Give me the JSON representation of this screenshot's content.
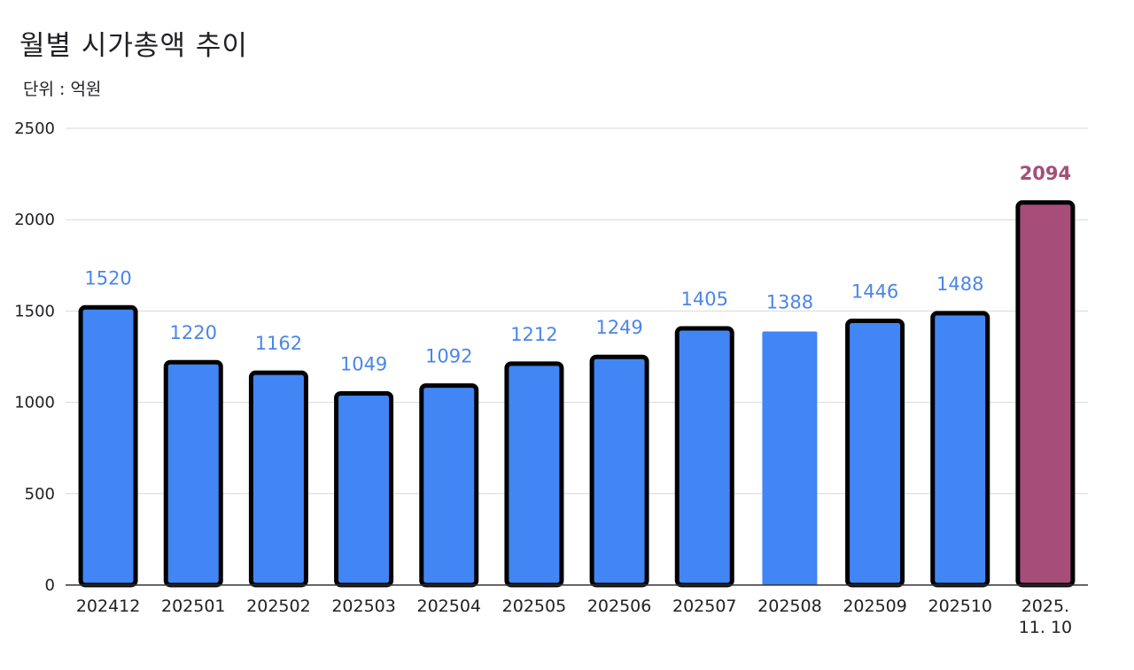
{
  "title": "월별 시가총액 추이",
  "subtitle": "단위 : 억원",
  "chart_data": {
    "type": "bar",
    "title": "월별 시가총액 추이",
    "subtitle": "단위 : 억원",
    "xlabel": "",
    "ylabel": "",
    "ylim": [
      0,
      2500
    ],
    "yticks": [
      0,
      500,
      1000,
      1500,
      2000,
      2500
    ],
    "grid": true,
    "categories": [
      "202412",
      "202501",
      "202502",
      "202503",
      "202504",
      "202505",
      "202506",
      "202507",
      "202508",
      "202509",
      "202510",
      "2025.\n11. 10"
    ],
    "values": [
      1520,
      1220,
      1162,
      1049,
      1092,
      1212,
      1249,
      1405,
      1388,
      1446,
      1488,
      2094
    ],
    "colors": {
      "bar": "#4285f4",
      "highlight": "#a64d79",
      "label": "#4a86e8",
      "highlight_label": "#a64d79",
      "outline": "#000000",
      "grid": "#d9d9d9"
    },
    "outlined": [
      true,
      true,
      true,
      true,
      true,
      true,
      true,
      true,
      false,
      true,
      true,
      true
    ],
    "highlight_index": 11
  }
}
